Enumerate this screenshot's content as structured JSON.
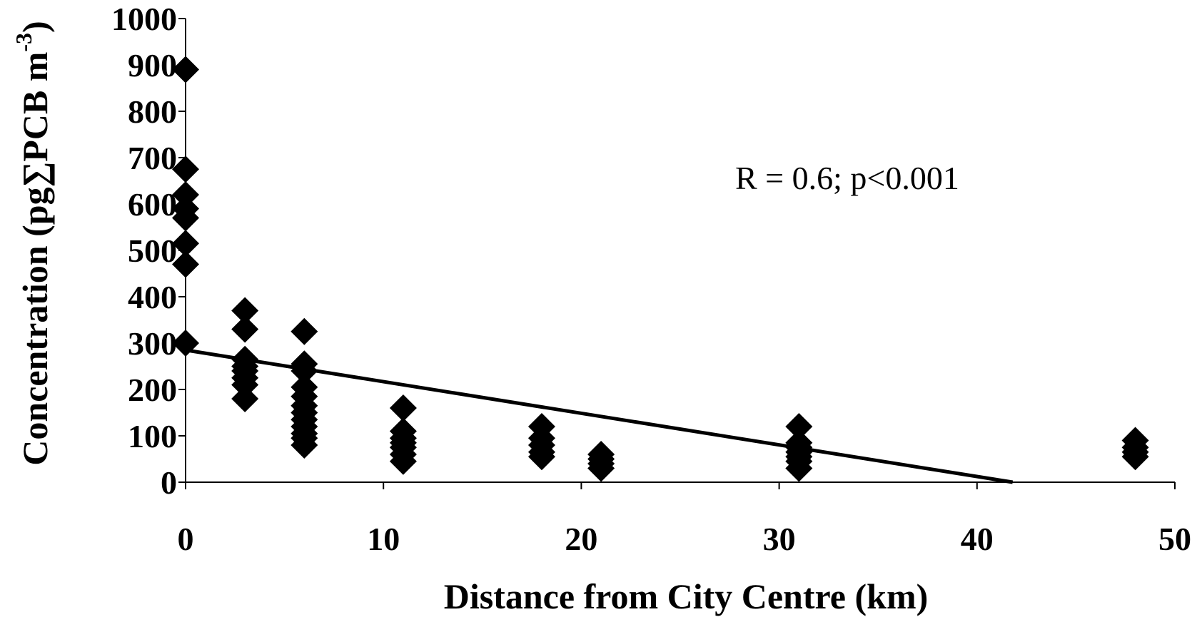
{
  "chart_data": {
    "type": "scatter",
    "title": "",
    "xlabel": "Distance from City Centre (km)",
    "ylabel_main": "Concentration (pg∑PCB m",
    "ylabel_sup": "-3",
    "ylabel_close": ")",
    "xlim": [
      0,
      50
    ],
    "ylim": [
      0,
      1000
    ],
    "x_ticks": [
      "0",
      "10",
      "20",
      "30",
      "40",
      "50"
    ],
    "y_ticks": [
      "0",
      "100",
      "200",
      "300",
      "400",
      "500",
      "600",
      "700",
      "800",
      "900",
      "1000"
    ],
    "grid": false,
    "legend": "none",
    "marker": "diamond",
    "marker_color": "#000000",
    "annotation": "R = 0.6; p<0.001",
    "trendline": {
      "x": [
        0,
        41.8
      ],
      "y": [
        285,
        0
      ]
    },
    "points": [
      {
        "x": 0,
        "y": 890
      },
      {
        "x": 0,
        "y": 675
      },
      {
        "x": 0,
        "y": 620
      },
      {
        "x": 0,
        "y": 590
      },
      {
        "x": 0,
        "y": 570
      },
      {
        "x": 0,
        "y": 515
      },
      {
        "x": 0,
        "y": 470
      },
      {
        "x": 0,
        "y": 300
      },
      {
        "x": 3,
        "y": 370
      },
      {
        "x": 3,
        "y": 330
      },
      {
        "x": 3,
        "y": 265
      },
      {
        "x": 3,
        "y": 250
      },
      {
        "x": 3,
        "y": 240
      },
      {
        "x": 3,
        "y": 225
      },
      {
        "x": 3,
        "y": 210
      },
      {
        "x": 3,
        "y": 180
      },
      {
        "x": 6,
        "y": 325
      },
      {
        "x": 6,
        "y": 255
      },
      {
        "x": 6,
        "y": 240
      },
      {
        "x": 6,
        "y": 205
      },
      {
        "x": 6,
        "y": 185
      },
      {
        "x": 6,
        "y": 165
      },
      {
        "x": 6,
        "y": 150
      },
      {
        "x": 6,
        "y": 135
      },
      {
        "x": 6,
        "y": 120
      },
      {
        "x": 6,
        "y": 105
      },
      {
        "x": 6,
        "y": 95
      },
      {
        "x": 6,
        "y": 80
      },
      {
        "x": 11,
        "y": 160
      },
      {
        "x": 11,
        "y": 110
      },
      {
        "x": 11,
        "y": 95
      },
      {
        "x": 11,
        "y": 85
      },
      {
        "x": 11,
        "y": 75
      },
      {
        "x": 11,
        "y": 60
      },
      {
        "x": 11,
        "y": 45
      },
      {
        "x": 18,
        "y": 120
      },
      {
        "x": 18,
        "y": 95
      },
      {
        "x": 18,
        "y": 80
      },
      {
        "x": 18,
        "y": 65
      },
      {
        "x": 18,
        "y": 55
      },
      {
        "x": 21,
        "y": 60
      },
      {
        "x": 21,
        "y": 50
      },
      {
        "x": 21,
        "y": 40
      },
      {
        "x": 21,
        "y": 30
      },
      {
        "x": 31,
        "y": 120
      },
      {
        "x": 31,
        "y": 85
      },
      {
        "x": 31,
        "y": 75
      },
      {
        "x": 31,
        "y": 65
      },
      {
        "x": 31,
        "y": 55
      },
      {
        "x": 31,
        "y": 45
      },
      {
        "x": 31,
        "y": 30
      },
      {
        "x": 48,
        "y": 90
      },
      {
        "x": 48,
        "y": 75
      },
      {
        "x": 48,
        "y": 65
      },
      {
        "x": 48,
        "y": 55
      }
    ]
  }
}
